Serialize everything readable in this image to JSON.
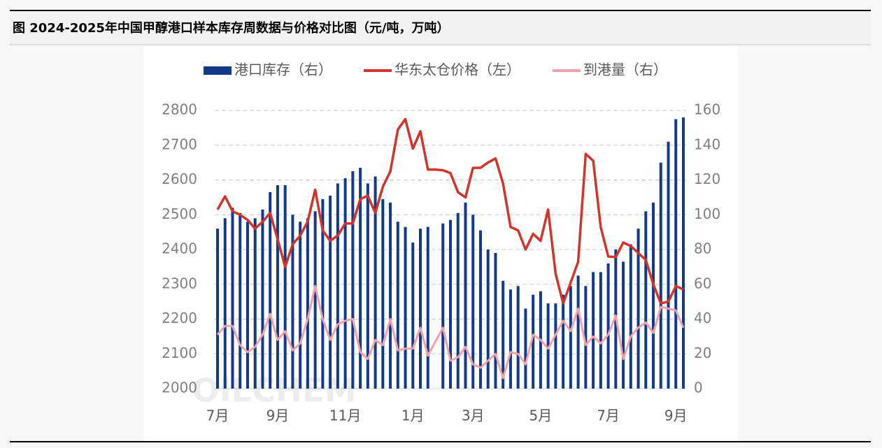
{
  "chart_data": {
    "type": "bar",
    "title": "图  2024-2025年中国甲醇港口样本库存周数据与价格对比图（元/吨，万吨）",
    "watermark": "OILCHEM",
    "categories": [
      "7月",
      null,
      null,
      null,
      null,
      null,
      null,
      null,
      "9月",
      null,
      null,
      null,
      null,
      null,
      null,
      null,
      null,
      "11月",
      null,
      null,
      null,
      null,
      null,
      null,
      null,
      null,
      "1月",
      null,
      null,
      null,
      null,
      null,
      null,
      null,
      "3月",
      null,
      null,
      null,
      null,
      null,
      null,
      null,
      null,
      "5月",
      null,
      null,
      null,
      null,
      null,
      null,
      null,
      null,
      "7月",
      null,
      null,
      null,
      null,
      null,
      null,
      null,
      null,
      "9月",
      null
    ],
    "series": [
      {
        "name": "港口库存（右）",
        "type": "bar",
        "axis": "y2",
        "color": "#12398a",
        "values": [
          92,
          98,
          104,
          101,
          96,
          98,
          103,
          113,
          117,
          117,
          100,
          96,
          98,
          102,
          109,
          111,
          118,
          121,
          125,
          127,
          118,
          122,
          109,
          107,
          96,
          93,
          84,
          92,
          93,
          null,
          95,
          97,
          101,
          107,
          100,
          91,
          80,
          78,
          62,
          57,
          59,
          46,
          54,
          56,
          49,
          49,
          54,
          59,
          65,
          59,
          67,
          67,
          72,
          80,
          73,
          83,
          92,
          102,
          107,
          130,
          142,
          155,
          156
        ]
      },
      {
        "name": "华东太仓价格（左）",
        "type": "line",
        "color": "#d2332b",
        "values": [
          2515,
          2553,
          2510,
          2500,
          2485,
          2460,
          2480,
          2505,
          2430,
          2350,
          2415,
          2440,
          2480,
          2572,
          2455,
          2425,
          2440,
          2475,
          2475,
          2545,
          2555,
          2505,
          2580,
          2625,
          2745,
          2775,
          2690,
          2740,
          2630,
          2630,
          2628,
          2620,
          2565,
          2550,
          2635,
          2635,
          2650,
          2662,
          2590,
          2465,
          2455,
          2400,
          2445,
          2425,
          2515,
          2330,
          2245,
          2305,
          2365,
          2675,
          2655,
          2465,
          2380,
          2378,
          2420,
          2410,
          2390,
          2370,
          2300,
          2245,
          2250,
          2295,
          2285
        ]
      },
      {
        "name": "到港量（右）",
        "type": "line",
        "axis": "y2",
        "color": "#f0a1aa",
        "values": [
          31,
          36,
          36,
          25,
          21,
          24,
          31,
          43,
          28,
          33,
          22,
          26,
          40,
          59,
          40,
          28,
          37,
          39,
          40,
          21,
          17,
          28,
          25,
          40,
          22,
          23,
          23,
          35,
          19,
          27,
          35,
          16,
          18,
          24,
          14,
          12,
          16,
          20,
          6,
          21,
          20,
          14,
          31,
          28,
          23,
          31,
          39,
          33,
          46,
          25,
          30,
          26,
          31,
          42,
          17,
          30,
          35,
          38,
          32,
          47,
          46,
          45,
          35
        ]
      }
    ],
    "ylim": [
      2000,
      2800
    ],
    "yticks": [
      2000,
      2100,
      2200,
      2300,
      2400,
      2500,
      2600,
      2700,
      2800
    ],
    "y2lim": [
      0,
      160
    ],
    "y2ticks": [
      0,
      20,
      40,
      60,
      80,
      100,
      120,
      140,
      160
    ],
    "grid": true,
    "legend": "top"
  }
}
